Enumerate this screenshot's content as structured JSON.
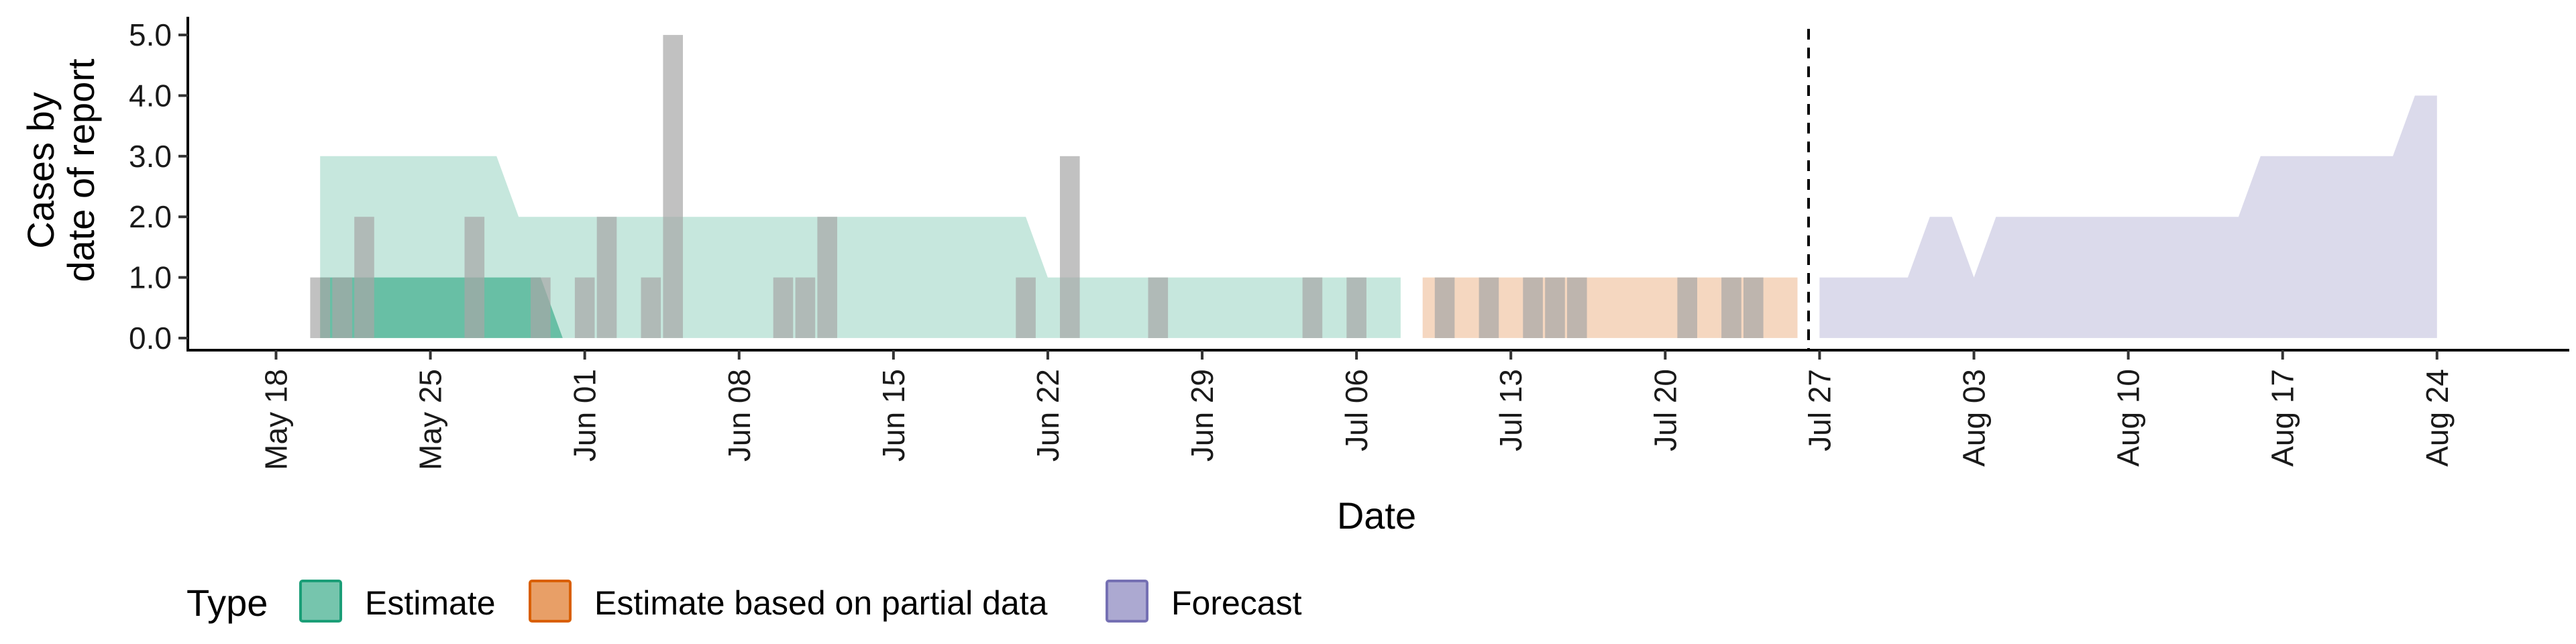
{
  "chart_data": {
    "type": "area",
    "xlabel": "Date",
    "ylabel_lines": [
      "Cases by",
      "date of report"
    ],
    "y_ticks": [
      "0.0",
      "1.0",
      "2.0",
      "3.0",
      "4.0",
      "5.0"
    ],
    "x_ticks": [
      "May 18",
      "May 25",
      "Jun 01",
      "Jun 08",
      "Jun 15",
      "Jun 22",
      "Jun 29",
      "Jul 06",
      "Jul 13",
      "Jul 20",
      "Jul 27",
      "Aug 03",
      "Aug 10",
      "Aug 17",
      "Aug 24"
    ],
    "x_range": [
      "2020-05-14",
      "2020-08-30"
    ],
    "ylim": [
      -0.2,
      5.3
    ],
    "forecast_date": "2020-07-26",
    "legend": {
      "title": "Type",
      "position": "bottom",
      "items": [
        {
          "label": "Estimate",
          "fill": "#1b9e77",
          "stroke": "#1b9e77"
        },
        {
          "label": "Estimate based on partial data",
          "fill": "#d95f02",
          "stroke": "#d95f02"
        },
        {
          "label": "Forecast",
          "fill": "#7570b3",
          "stroke": "#7570b3"
        }
      ]
    },
    "colors": {
      "estimate": "#1b9e77",
      "partial": "#d95f02",
      "forecast": "#7570b3",
      "bars": "#a6a6a6"
    },
    "bands": [
      {
        "type": "Estimate",
        "level": "outer",
        "x": [
          "2020-05-20",
          "2020-05-28",
          "2020-05-29",
          "2020-06-21",
          "2020-06-22",
          "2020-07-08"
        ],
        "upper": [
          3,
          3,
          2,
          2,
          1,
          1
        ],
        "lower": [
          0,
          0,
          0,
          0,
          0,
          0
        ]
      },
      {
        "type": "Estimate",
        "level": "inner",
        "x": [
          "2020-05-20",
          "2020-05-30",
          "2020-05-31"
        ],
        "upper": [
          1,
          1,
          0
        ],
        "lower": [
          0,
          0,
          0
        ]
      },
      {
        "type": "Estimate based on partial data",
        "level": "outer",
        "x": [
          "2020-07-09",
          "2020-07-26"
        ],
        "upper": [
          1,
          1
        ],
        "lower": [
          0,
          0
        ]
      },
      {
        "type": "Forecast",
        "level": "outer",
        "x": [
          "2020-07-27",
          "2020-07-31",
          "2020-08-01",
          "2020-08-02",
          "2020-08-03",
          "2020-08-04",
          "2020-08-15",
          "2020-08-16",
          "2020-08-22",
          "2020-08-23",
          "2020-08-24"
        ],
        "upper": [
          1,
          1,
          2,
          2,
          1,
          2,
          2,
          3,
          3,
          4,
          4
        ],
        "lower": [
          0,
          0,
          0,
          0,
          0,
          0,
          0,
          0,
          0,
          0,
          0
        ]
      }
    ],
    "reported_cases": {
      "dates": [
        "2020-05-20",
        "2020-05-21",
        "2020-05-22",
        "2020-05-27",
        "2020-05-30",
        "2020-06-01",
        "2020-06-02",
        "2020-06-04",
        "2020-06-05",
        "2020-06-10",
        "2020-06-11",
        "2020-06-12",
        "2020-06-21",
        "2020-06-23",
        "2020-06-27",
        "2020-07-04",
        "2020-07-06",
        "2020-07-10",
        "2020-07-12",
        "2020-07-14",
        "2020-07-15",
        "2020-07-16",
        "2020-07-21",
        "2020-07-23",
        "2020-07-24"
      ],
      "values": [
        1,
        1,
        2,
        2,
        1,
        1,
        2,
        1,
        5,
        1,
        1,
        2,
        1,
        3,
        1,
        1,
        1,
        1,
        1,
        1,
        1,
        1,
        1,
        1,
        1
      ]
    }
  }
}
